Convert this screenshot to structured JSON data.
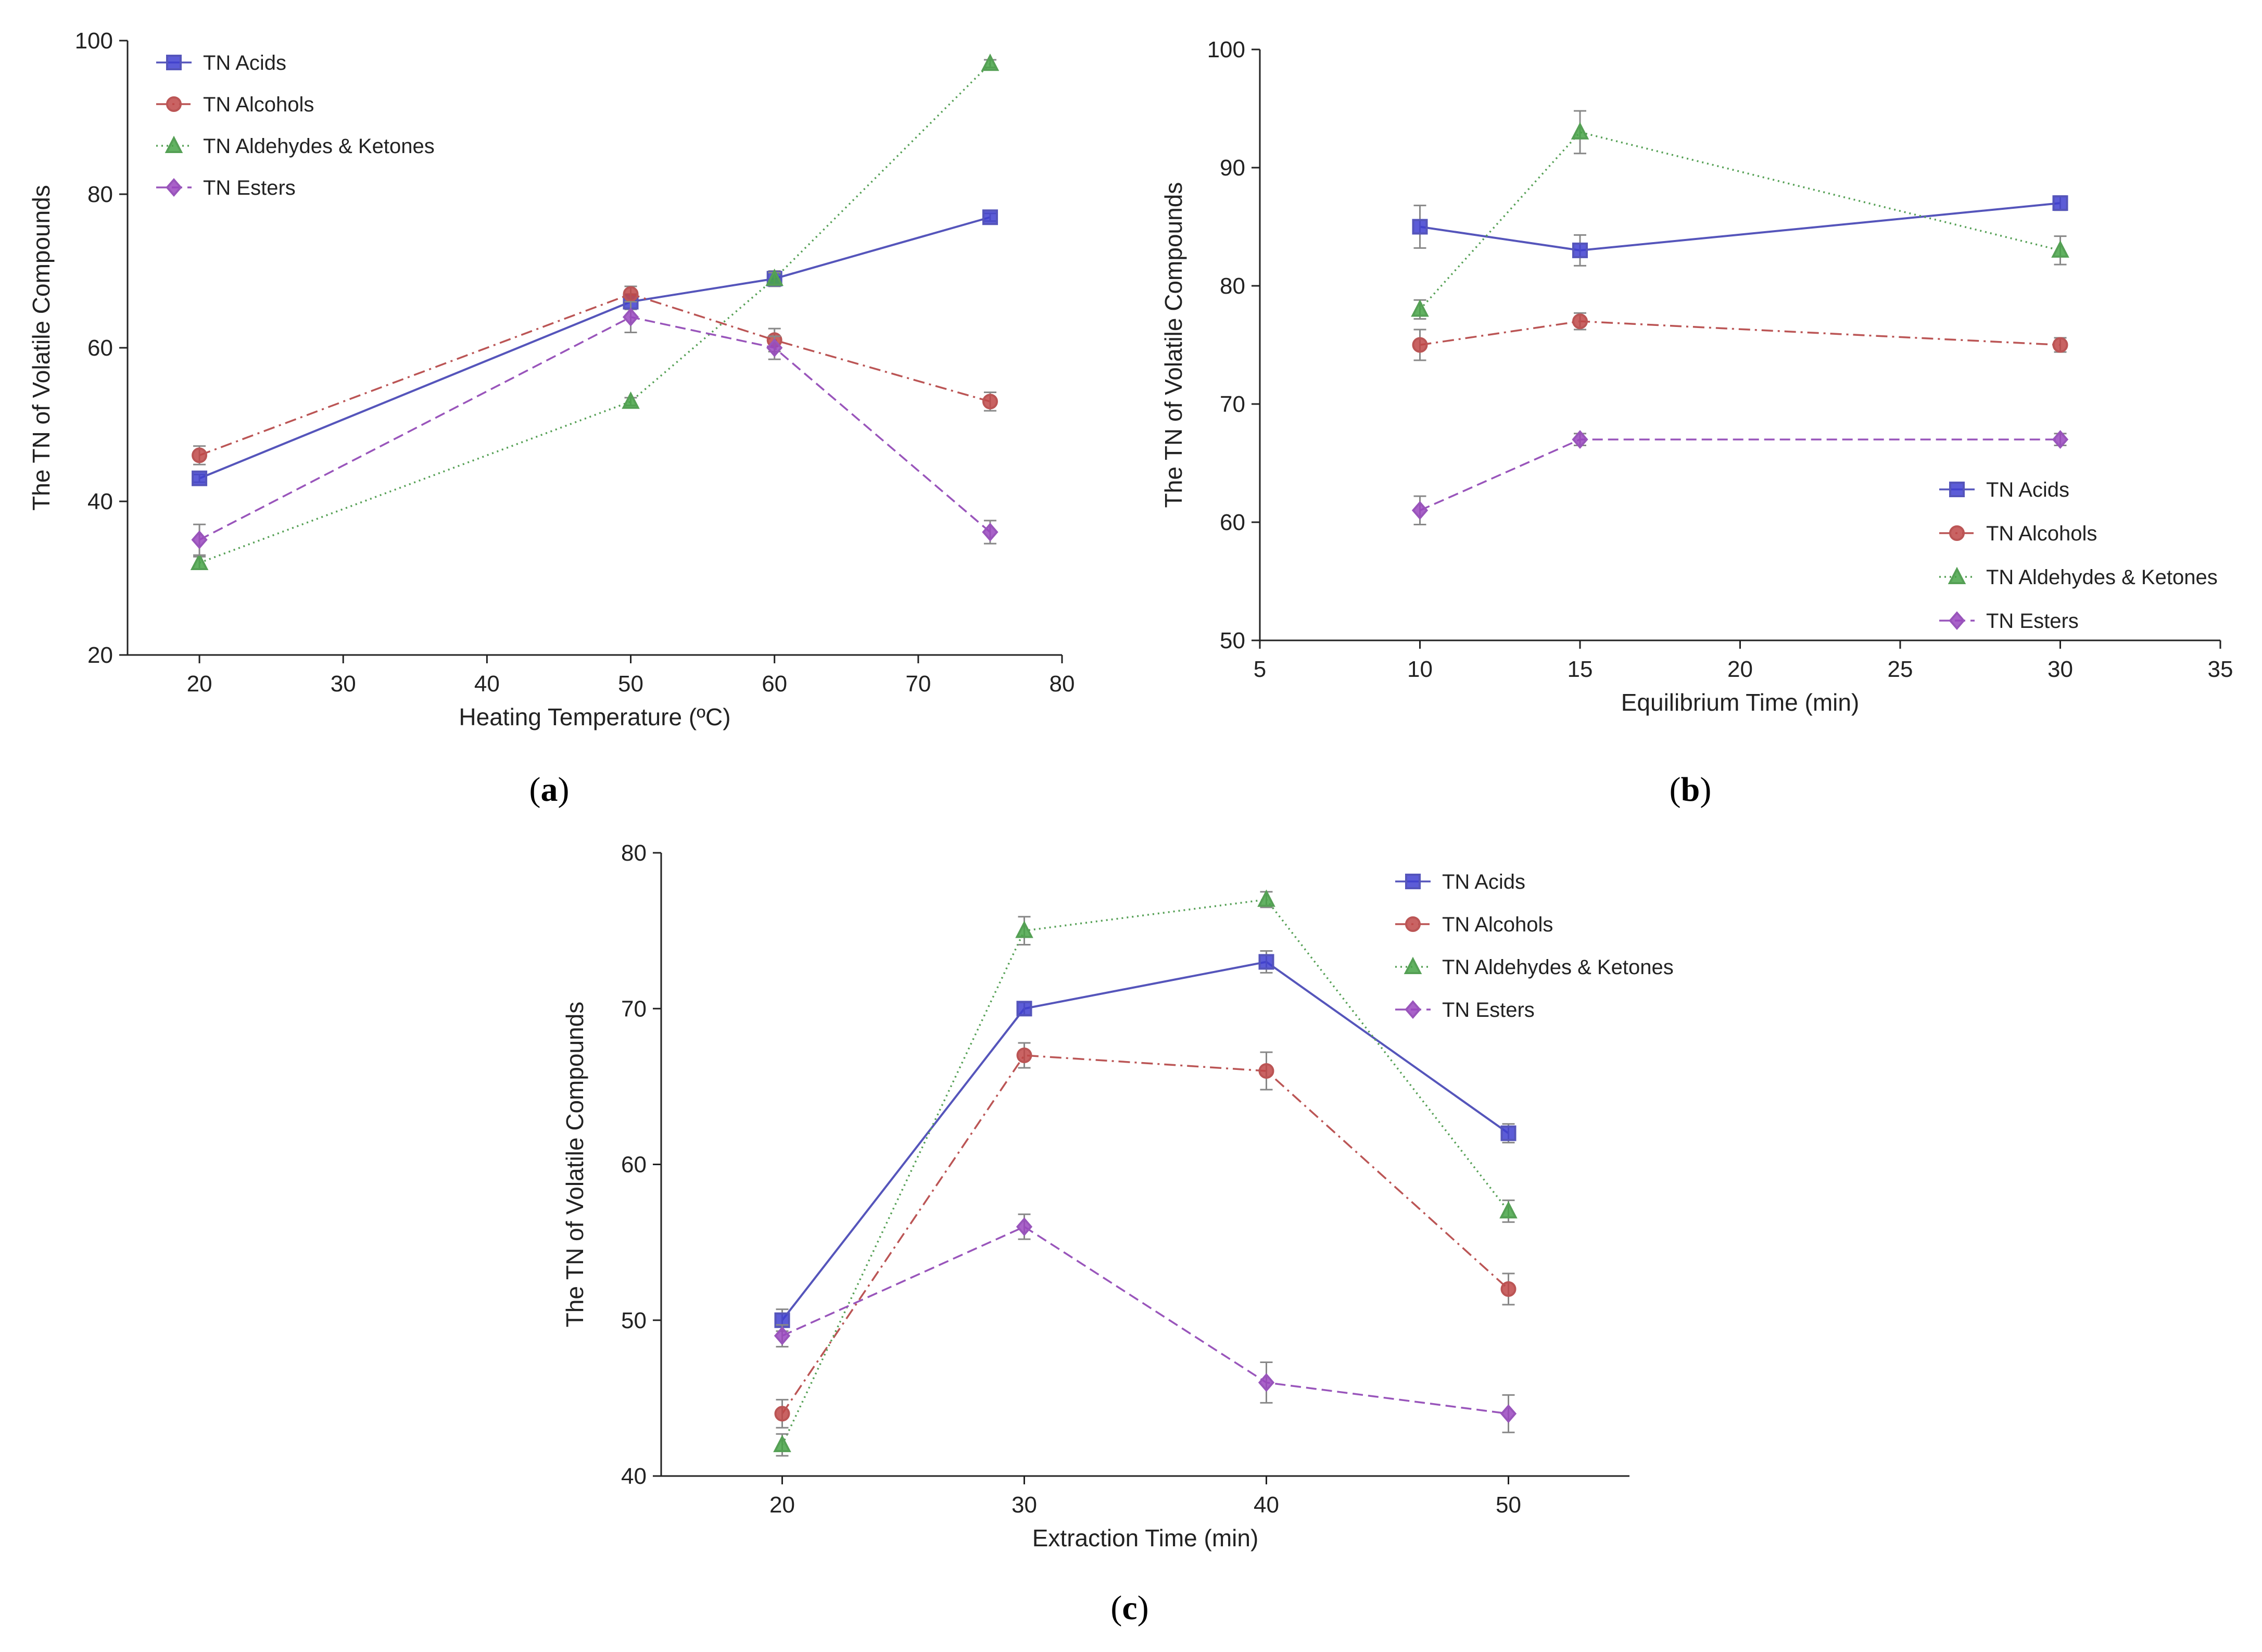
{
  "figure": {
    "series_styles": {
      "TN Acids": {
        "color": "#5555bb",
        "marker": "square",
        "dash": "none"
      },
      "TN Alcohols": {
        "color": "#bb5555",
        "marker": "circle",
        "dash": "dashdot"
      },
      "TN Aldehydes & Ketones": {
        "color": "#55a055",
        "marker": "triangle",
        "dash": "dotted"
      },
      "TN Esters": {
        "color": "#9955bb",
        "marker": "diamond",
        "dash": "dashed"
      }
    },
    "marker_colors": {
      "TN Acids": "#3f3fd0",
      "TN Alcohols": "#c04848",
      "TN Aldehydes & Ketones": "#46a546",
      "TN Esters": "#9a46c0"
    },
    "error_bar_color": "#888888",
    "axis_color": "#222222"
  },
  "chart_data": [
    {
      "id": "a",
      "type": "line",
      "caption_open": "(",
      "caption_letter": "a",
      "caption_close": ")",
      "xlabel": "Heating Temperature (ºC)",
      "ylabel": "The TN of Volatile Compounds",
      "xlim": [
        15,
        80
      ],
      "ylim": [
        20,
        100
      ],
      "xticks": [
        20,
        30,
        40,
        50,
        60,
        70,
        80
      ],
      "yticks": [
        20,
        40,
        60,
        80,
        100
      ],
      "legend_position": "top-left",
      "x": [
        20,
        50,
        60,
        75
      ],
      "series": [
        {
          "name": "TN Acids",
          "values": [
            43,
            66,
            69,
            77
          ],
          "errors": [
            0.5,
            1.0,
            1.0,
            0.5
          ]
        },
        {
          "name": "TN Alcohols",
          "values": [
            46,
            67,
            61,
            53
          ],
          "errors": [
            1.2,
            1.0,
            1.5,
            1.2
          ]
        },
        {
          "name": "TN Aldehydes & Ketones",
          "values": [
            32,
            53,
            69,
            97
          ],
          "errors": [
            0.8,
            0.5,
            0.8,
            0.5
          ]
        },
        {
          "name": "TN Esters",
          "values": [
            35,
            64,
            60,
            36
          ],
          "errors": [
            2.0,
            2.0,
            1.5,
            1.5
          ]
        }
      ]
    },
    {
      "id": "b",
      "type": "line",
      "caption_open": "(",
      "caption_letter": "b",
      "caption_close": ")",
      "xlabel": "Equilibrium Time (min)",
      "ylabel": "The TN of Volatile Compounds",
      "xlim": [
        5,
        35
      ],
      "ylim": [
        50,
        100
      ],
      "xticks": [
        5,
        10,
        15,
        20,
        25,
        30,
        35
      ],
      "yticks": [
        50,
        60,
        70,
        80,
        90,
        100
      ],
      "legend_position": "bottom-right",
      "x": [
        10,
        15,
        30
      ],
      "series": [
        {
          "name": "TN Acids",
          "values": [
            85,
            83,
            87
          ],
          "errors": [
            1.8,
            1.3,
            0.6
          ]
        },
        {
          "name": "TN Alcohols",
          "values": [
            75,
            77,
            75
          ],
          "errors": [
            1.3,
            0.7,
            0.6
          ]
        },
        {
          "name": "TN Aldehydes & Ketones",
          "values": [
            78,
            93,
            83
          ],
          "errors": [
            0.8,
            1.8,
            1.2
          ]
        },
        {
          "name": "TN Esters",
          "values": [
            61,
            67,
            67
          ],
          "errors": [
            1.2,
            0.5,
            0.5
          ]
        }
      ]
    },
    {
      "id": "c",
      "type": "line",
      "caption_open": "(",
      "caption_letter": "c",
      "caption_close": ")",
      "xlabel": "Extraction Time (min)",
      "ylabel": "The TN of Volatile Compounds",
      "xlim": [
        15,
        55
      ],
      "ylim": [
        40,
        80
      ],
      "xticks": [
        20,
        30,
        40,
        50
      ],
      "yticks": [
        40,
        50,
        60,
        70,
        80
      ],
      "legend_position": "top-right",
      "x": [
        20,
        30,
        40,
        50
      ],
      "series": [
        {
          "name": "TN Acids",
          "values": [
            50,
            70,
            73,
            62
          ],
          "errors": [
            0.7,
            0.4,
            0.7,
            0.6
          ]
        },
        {
          "name": "TN Alcohols",
          "values": [
            44,
            67,
            66,
            52
          ],
          "errors": [
            0.9,
            0.8,
            1.2,
            1.0
          ]
        },
        {
          "name": "TN Aldehydes & Ketones",
          "values": [
            42,
            75,
            77,
            57
          ],
          "errors": [
            0.7,
            0.9,
            0.5,
            0.7
          ]
        },
        {
          "name": "TN Esters",
          "values": [
            49,
            56,
            46,
            44
          ],
          "errors": [
            0.7,
            0.8,
            1.3,
            1.2
          ]
        }
      ]
    }
  ]
}
